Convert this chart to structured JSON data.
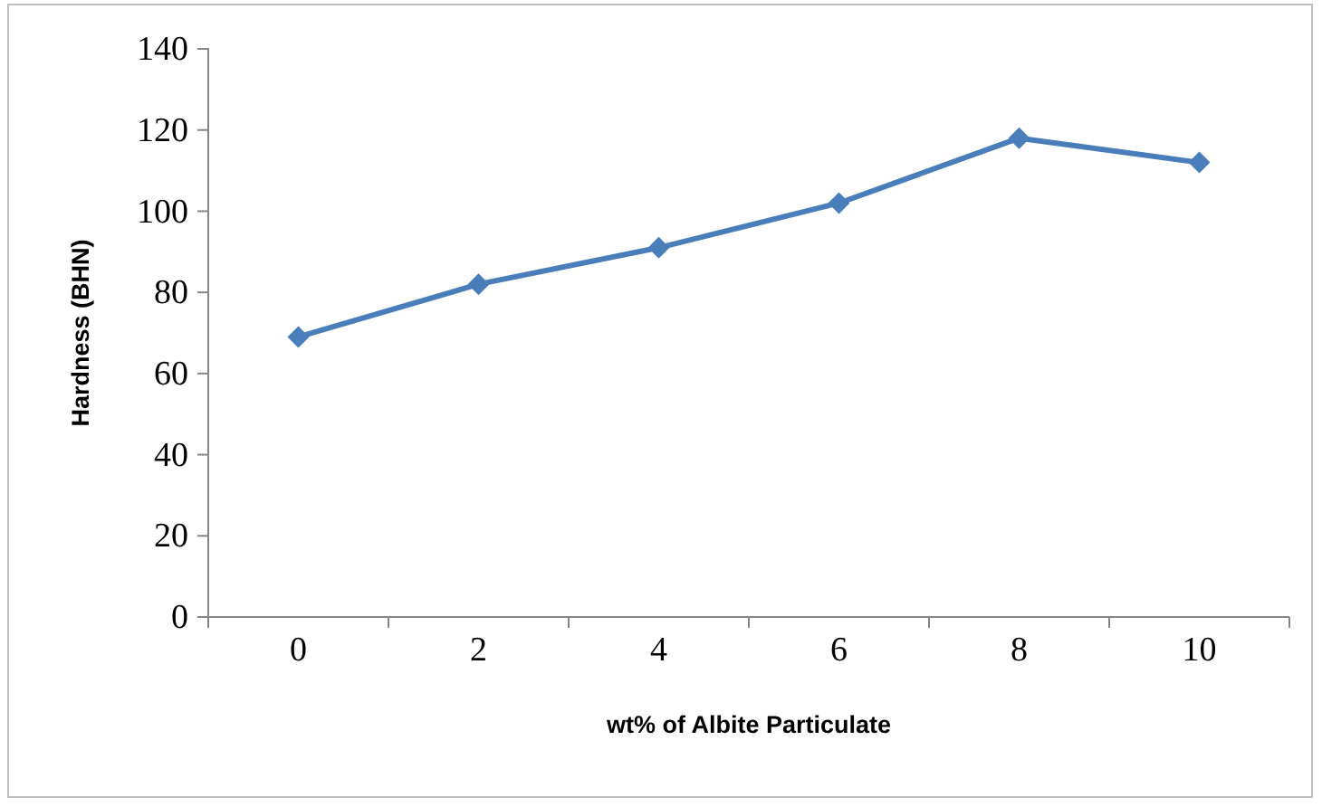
{
  "chart_data": {
    "type": "line",
    "xlabel": "wt% of Albite Particulate",
    "ylabel": "Hardness (BHN)",
    "categories": [
      "0",
      "2",
      "4",
      "6",
      "8",
      "10"
    ],
    "series": [
      {
        "color": "#4a7ebb",
        "values": [
          69,
          82,
          91,
          102,
          118,
          112
        ]
      }
    ],
    "ylim": [
      0,
      140
    ],
    "yticks": [
      0,
      20,
      40,
      60,
      80,
      100,
      120,
      140
    ],
    "grid": false,
    "marker": "diamond",
    "line_style": "solid"
  }
}
